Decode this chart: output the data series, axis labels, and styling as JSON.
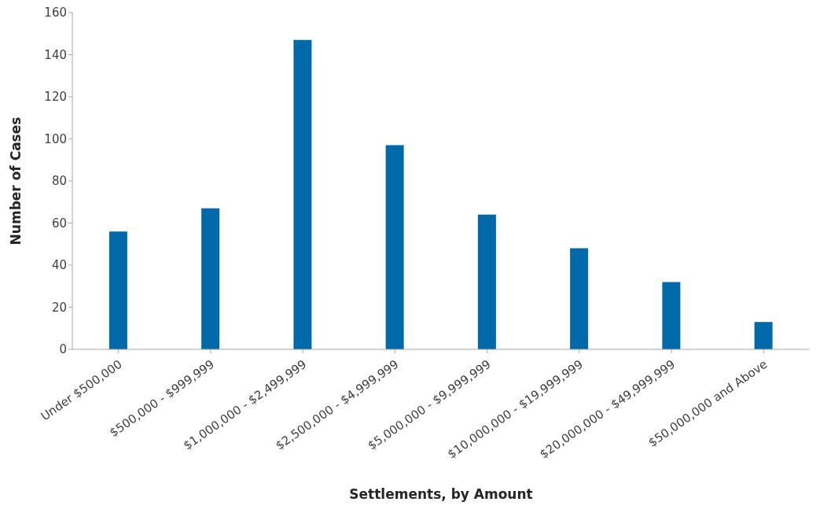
{
  "chart_data": {
    "type": "bar",
    "xlabel": "Settlements, by Amount",
    "ylabel": "Number of Cases",
    "categories": [
      "Under $500,000",
      "$500,000 - $999,999",
      "$1,000,000 - $2,499,999",
      "$2,500,000 - $4,999,999",
      "$5,000,000 - $9,999,999",
      "$10,000,000 - $19,999,999",
      "$20,000,000 - $49,999,999",
      "$50,000,000 and Above"
    ],
    "values": [
      56,
      67,
      147,
      97,
      64,
      48,
      32,
      13
    ],
    "color": "#0069aa",
    "ylim": [
      0,
      160
    ],
    "yticks": [
      0,
      20,
      40,
      60,
      80,
      100,
      120,
      140,
      160
    ],
    "grid": false,
    "legend": false
  }
}
